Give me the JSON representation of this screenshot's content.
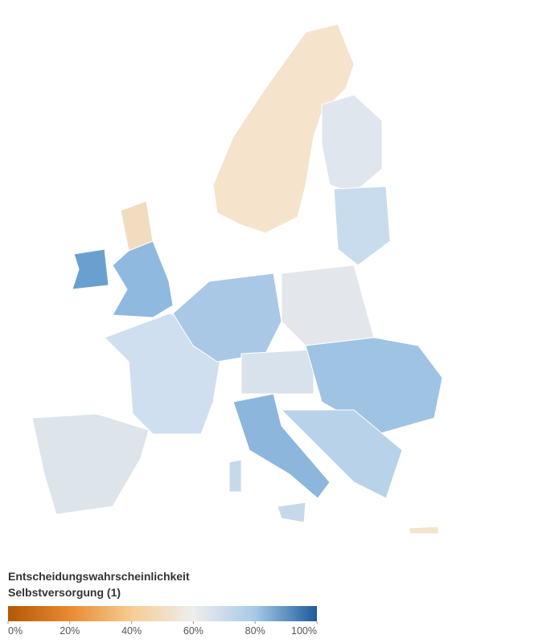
{
  "legend": {
    "title_lines": [
      "Entscheidungswahrscheinlichkeit",
      "Selbstversorgung (1)"
    ],
    "range": [
      0,
      100
    ],
    "ticks": [
      {
        "value": 0,
        "label": "0%"
      },
      {
        "value": 20,
        "label": "20%"
      },
      {
        "value": 40,
        "label": "40%"
      },
      {
        "value": 60,
        "label": "60%"
      },
      {
        "value": 80,
        "label": "80%"
      },
      {
        "value": 100,
        "label": "100%"
      }
    ],
    "color_stops": [
      "#b35806",
      "#e88a32",
      "#f6cc92",
      "#eeeeee",
      "#a6c9e6",
      "#1d5a9c"
    ]
  }
}
